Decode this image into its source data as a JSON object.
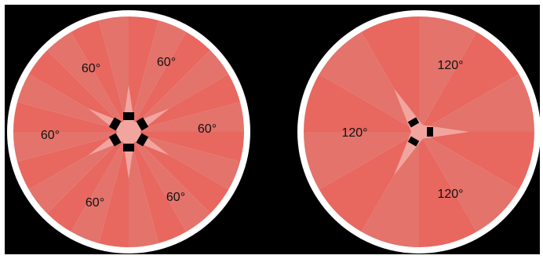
{
  "diagrams": [
    {
      "id": "six-sensor",
      "sector_count": 6,
      "labels": [
        "60°",
        "60°",
        "60°",
        "60°",
        "60°",
        "60°"
      ]
    },
    {
      "id": "three-sensor",
      "sector_count": 3,
      "labels": [
        "120°",
        "120°",
        "120°"
      ]
    }
  ],
  "colors": {
    "background": "#000000",
    "rim": "#ffffff",
    "coverage_a": "#e8675f",
    "coverage_b": "#e3736b",
    "blind_zone": "#f2a8a2",
    "sensor": "#000000"
  }
}
